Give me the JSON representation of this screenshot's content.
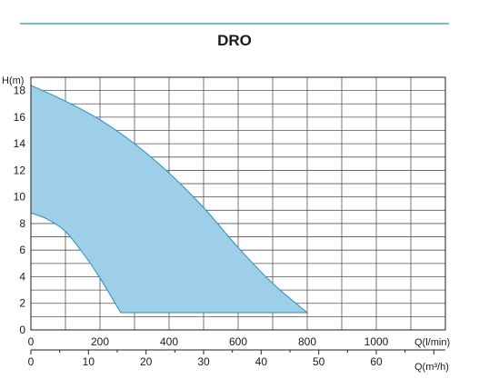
{
  "colors": {
    "accent": "#2a8cc0",
    "title": "#1d8ac4",
    "area_fill": "#9ecfe8",
    "area_stroke": "#2a8cc0",
    "grid": "#555555",
    "axis": "#222222"
  },
  "chart_data": {
    "type": "area",
    "title": "DRO",
    "ylabel": "H(m)",
    "xlabel": "Q(l/min)",
    "x2label": "Q(m³/h)",
    "xlim": [
      0,
      1200
    ],
    "ylim": [
      0,
      19
    ],
    "x_ticks": [
      0,
      200,
      400,
      600,
      800,
      1000
    ],
    "x_tick_labels": [
      "0",
      "200",
      "400",
      "600",
      "800",
      "1000"
    ],
    "x2_ticks": [
      0,
      10,
      20,
      30,
      40,
      50,
      60
    ],
    "x2_tick_labels": [
      "0",
      "10",
      "20",
      "30",
      "40",
      "50",
      "60"
    ],
    "y_ticks": [
      0,
      2,
      4,
      6,
      8,
      10,
      12,
      14,
      16,
      18
    ],
    "y_tick_labels": [
      "0",
      "2",
      "4",
      "6",
      "8",
      "10",
      "12",
      "14",
      "16",
      "18"
    ],
    "grid": true,
    "series": [
      {
        "role": "upper-curve",
        "x": [
          0,
          100,
          200,
          300,
          400,
          500,
          600,
          700,
          800
        ],
        "y": [
          18.4,
          17.2,
          15.8,
          14.0,
          11.8,
          9.2,
          6.2,
          3.5,
          1.3
        ]
      },
      {
        "role": "lower-curve",
        "x": [
          0,
          50,
          100,
          150,
          200,
          260
        ],
        "y": [
          8.8,
          8.3,
          7.4,
          5.8,
          3.9,
          1.3
        ]
      }
    ],
    "min_head": 1.3
  }
}
